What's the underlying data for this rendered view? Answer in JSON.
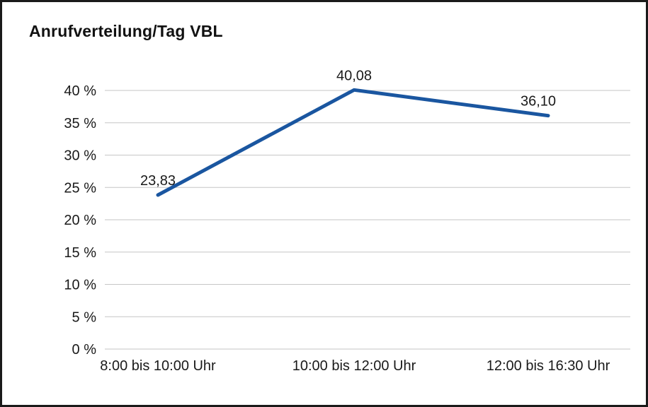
{
  "chart_data": {
    "type": "line",
    "title": "Anrufverteilung/Tag VBL",
    "categories": [
      "8:00 bis 10:00 Uhr",
      "10:00 bis 12:00 Uhr",
      "12:00 bis 16:30 Uhr"
    ],
    "values": [
      23.83,
      40.08,
      36.1
    ],
    "value_labels": [
      "23,83",
      "40,08",
      "36,10"
    ],
    "ylim": [
      0,
      40
    ],
    "ytick_step": 5,
    "ytick_labels": [
      "0 %",
      "5 %",
      "10 %",
      "15 %",
      "20 %",
      "25 %",
      "30 %",
      "35 %",
      "40 %"
    ],
    "xlabel": "",
    "ylabel": "",
    "grid": true,
    "legend": "none",
    "line_color": "#1a56a0",
    "grid_color": "#c6c6c6",
    "text_color": "#1a1a1a"
  }
}
